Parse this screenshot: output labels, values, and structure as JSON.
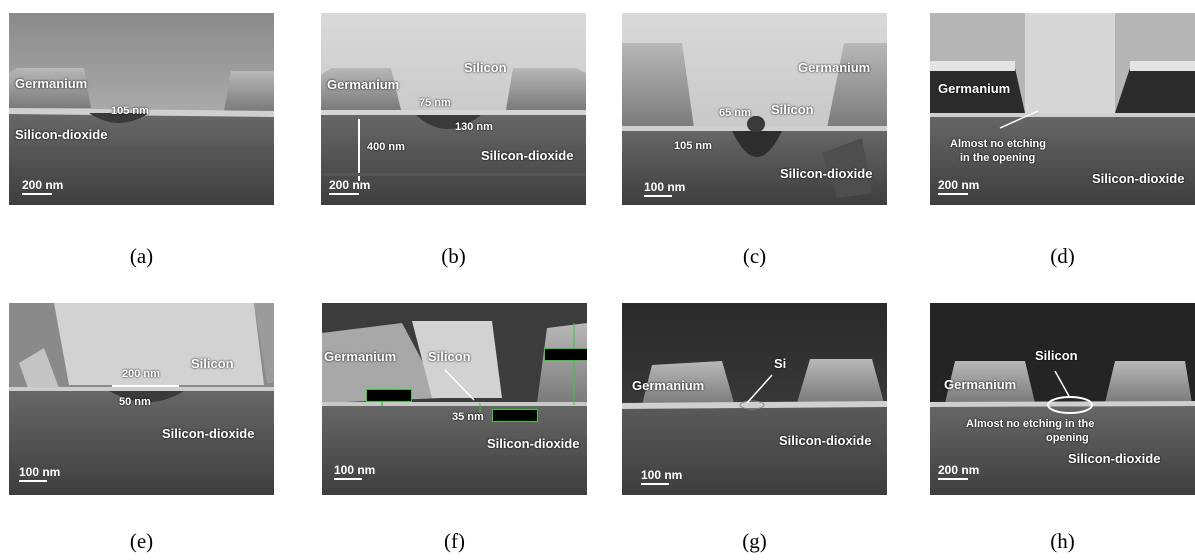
{
  "panels": [
    {
      "id": "a",
      "caption": "(a)",
      "labels": {
        "germanium": "Germanium",
        "dim1": "105 nm",
        "sio2": "Silicon-dioxide"
      },
      "scale": "200 nm"
    },
    {
      "id": "b",
      "caption": "(b)",
      "labels": {
        "germanium": "Germanium",
        "silicon": "Silicon",
        "dim1": "75 nm",
        "dim2": "130 nm",
        "dim3": "400 nm",
        "sio2": "Silicon-dioxide"
      },
      "scale": "200 nm"
    },
    {
      "id": "c",
      "caption": "(c)",
      "labels": {
        "germanium": "Germanium",
        "silicon": "Silicon",
        "dim1": "65 nm",
        "dim2": "105 nm",
        "sio2": "Silicon-dioxide"
      },
      "scale": "100 nm"
    },
    {
      "id": "d",
      "caption": "(d)",
      "labels": {
        "germanium": "Germanium",
        "note1": "Almost no etching",
        "note2": "in the opening",
        "sio2": "Silicon-dioxide"
      },
      "scale": "200 nm"
    },
    {
      "id": "e",
      "caption": "(e)",
      "labels": {
        "silicon": "Silicon",
        "dim1": "200 nm",
        "dim2": "50 nm",
        "sio2": "Silicon-dioxide"
      },
      "scale": "100 nm"
    },
    {
      "id": "f",
      "caption": "(f)",
      "labels": {
        "germanium": "Germanium",
        "silicon": "Silicon",
        "dim1": "35 nm",
        "sio2": "Silicon-dioxide"
      },
      "scale": "100 nm"
    },
    {
      "id": "g",
      "caption": "(g)",
      "labels": {
        "germanium": "Germanium",
        "silicon": "Si",
        "sio2": "Silicon-dioxide"
      },
      "scale": "100 nm"
    },
    {
      "id": "h",
      "caption": "(h)",
      "labels": {
        "germanium": "Germanium",
        "silicon": "Silicon",
        "note1": "Almost no etching in the",
        "note2": "opening",
        "sio2": "Silicon-dioxide"
      },
      "scale": "200 nm"
    }
  ]
}
